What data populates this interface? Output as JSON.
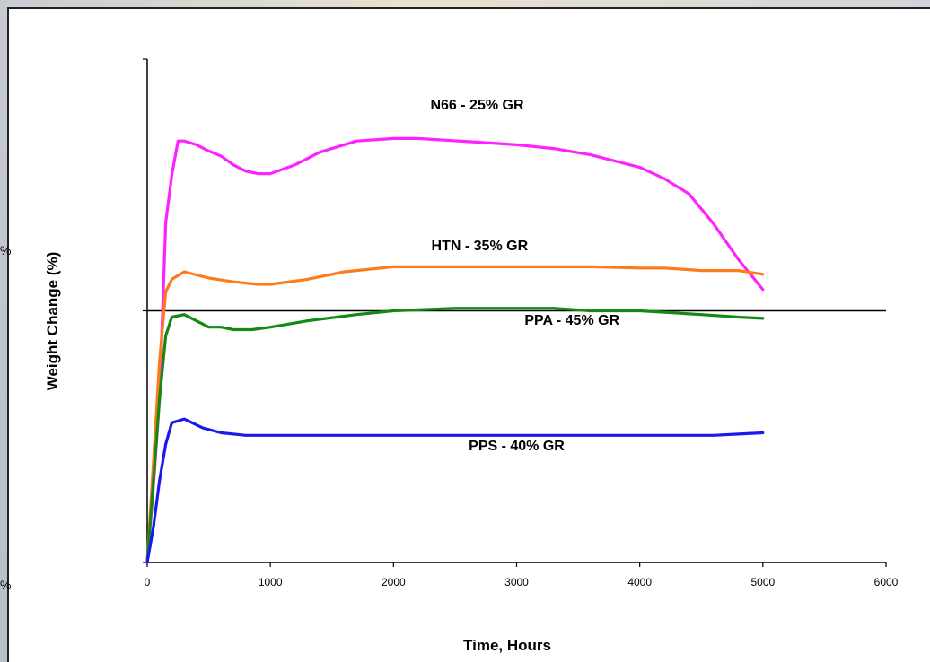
{
  "chart_data": {
    "type": "line",
    "title": "",
    "xlabel": "Time, Hours",
    "ylabel": "Weight Change (%)",
    "xlim": [
      0,
      6000
    ],
    "ylim": [
      -2,
      2
    ],
    "x_ticks": [
      "0",
      "1000",
      "2000",
      "3000",
      "4000",
      "5000",
      "6000"
    ],
    "y_tick_fragments": [
      "%",
      "%"
    ],
    "grid": false,
    "legend": "none",
    "series": [
      {
        "name": "N66 - 25% GR",
        "color": "#ff22ff",
        "points": [
          [
            0,
            -2
          ],
          [
            50,
            -1.4
          ],
          [
            100,
            -0.7
          ],
          [
            150,
            0.7
          ],
          [
            200,
            1.08
          ],
          [
            250,
            1.35
          ],
          [
            300,
            1.35
          ],
          [
            400,
            1.32
          ],
          [
            500,
            1.27
          ],
          [
            600,
            1.23
          ],
          [
            700,
            1.16
          ],
          [
            800,
            1.11
          ],
          [
            900,
            1.09
          ],
          [
            1000,
            1.09
          ],
          [
            1200,
            1.16
          ],
          [
            1400,
            1.26
          ],
          [
            1700,
            1.35
          ],
          [
            2000,
            1.37
          ],
          [
            2200,
            1.37
          ],
          [
            2700,
            1.34
          ],
          [
            3000,
            1.32
          ],
          [
            3300,
            1.29
          ],
          [
            3600,
            1.24
          ],
          [
            4000,
            1.14
          ],
          [
            4200,
            1.05
          ],
          [
            4400,
            0.93
          ],
          [
            4600,
            0.69
          ],
          [
            4800,
            0.41
          ],
          [
            5000,
            0.17
          ]
        ]
      },
      {
        "name": "HTN - 35% GR",
        "color": "#ff7a1a",
        "points": [
          [
            0,
            -2
          ],
          [
            50,
            -1.2
          ],
          [
            100,
            -0.4
          ],
          [
            150,
            0.15
          ],
          [
            200,
            0.25
          ],
          [
            300,
            0.31
          ],
          [
            500,
            0.26
          ],
          [
            700,
            0.23
          ],
          [
            900,
            0.21
          ],
          [
            1000,
            0.21
          ],
          [
            1300,
            0.25
          ],
          [
            1600,
            0.31
          ],
          [
            2000,
            0.35
          ],
          [
            2500,
            0.35
          ],
          [
            3000,
            0.35
          ],
          [
            3600,
            0.35
          ],
          [
            4000,
            0.34
          ],
          [
            4200,
            0.34
          ],
          [
            4500,
            0.32
          ],
          [
            4800,
            0.32
          ],
          [
            5000,
            0.29
          ]
        ]
      },
      {
        "name": "PPA - 45% GR",
        "color": "#138a13",
        "points": [
          [
            0,
            -2
          ],
          [
            50,
            -1.35
          ],
          [
            100,
            -0.7
          ],
          [
            150,
            -0.2
          ],
          [
            200,
            -0.05
          ],
          [
            300,
            -0.03
          ],
          [
            500,
            -0.13
          ],
          [
            600,
            -0.13
          ],
          [
            700,
            -0.15
          ],
          [
            850,
            -0.15
          ],
          [
            1000,
            -0.13
          ],
          [
            1300,
            -0.08
          ],
          [
            1700,
            -0.03
          ],
          [
            2000,
            0
          ],
          [
            2500,
            0.02
          ],
          [
            3000,
            0.02
          ],
          [
            3300,
            0.02
          ],
          [
            3600,
            0
          ],
          [
            4000,
            0
          ],
          [
            4500,
            -0.03
          ],
          [
            4800,
            -0.05
          ],
          [
            5000,
            -0.06
          ]
        ]
      },
      {
        "name": "PPS - 40% GR",
        "color": "#1a1aee",
        "points": [
          [
            0,
            -2
          ],
          [
            50,
            -1.72
          ],
          [
            100,
            -1.35
          ],
          [
            150,
            -1.06
          ],
          [
            200,
            -0.89
          ],
          [
            300,
            -0.86
          ],
          [
            450,
            -0.93
          ],
          [
            600,
            -0.97
          ],
          [
            800,
            -0.99
          ],
          [
            1000,
            -0.99
          ],
          [
            2000,
            -0.99
          ],
          [
            3000,
            -0.99
          ],
          [
            4000,
            -0.99
          ],
          [
            4600,
            -0.99
          ],
          [
            4800,
            -0.98
          ],
          [
            5000,
            -0.97
          ]
        ]
      }
    ],
    "labels": [
      {
        "text": "N66 - 25% GR",
        "x": 2300,
        "y": 1.6,
        "anchor": "start"
      },
      {
        "text": "HTN - 35% GR",
        "x": 2700,
        "y": 0.48,
        "anchor": "middle"
      },
      {
        "text": "PPA - 45% GR",
        "x": 3450,
        "y": -0.11,
        "anchor": "middle"
      },
      {
        "text": "PPS - 40% GR",
        "x": 3000,
        "y": -1.11,
        "anchor": "middle"
      }
    ]
  }
}
